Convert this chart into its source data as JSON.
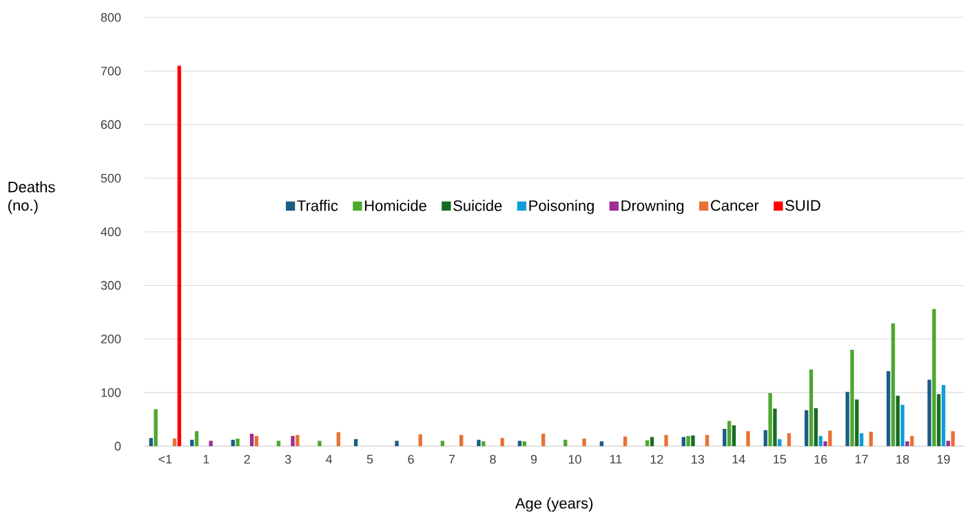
{
  "chart_data": {
    "type": "bar",
    "xlabel": "Age (years)",
    "ylabel": "Deaths (no.)",
    "categories": [
      "<1",
      "1",
      "2",
      "3",
      "4",
      "5",
      "6",
      "7",
      "8",
      "9",
      "10",
      "11",
      "12",
      "13",
      "14",
      "15",
      "16",
      "17",
      "18",
      "19"
    ],
    "ylim": [
      0,
      800
    ],
    "yticks": [
      0,
      100,
      200,
      300,
      400,
      500,
      600,
      700,
      800
    ],
    "grid": "y",
    "legend": "center",
    "series": [
      {
        "name": "Traffic",
        "color": "#195e83",
        "values": [
          15,
          12,
          12,
          null,
          null,
          13,
          10,
          null,
          12,
          10,
          null,
          9,
          null,
          17,
          32,
          30,
          67,
          101,
          140,
          124
        ]
      },
      {
        "name": "Homicide",
        "color": "#4ea72e",
        "values": [
          69,
          28,
          14,
          10,
          10,
          null,
          null,
          10,
          9,
          9,
          12,
          null,
          11,
          19,
          47,
          99,
          143,
          180,
          229,
          256
        ]
      },
      {
        "name": "Suicide",
        "color": "#196b24",
        "values": [
          null,
          null,
          null,
          null,
          null,
          null,
          null,
          null,
          null,
          null,
          null,
          null,
          17,
          20,
          39,
          70,
          71,
          87,
          94,
          97
        ]
      },
      {
        "name": "Poisoning",
        "color": "#0f9ed5",
        "values": [
          null,
          null,
          null,
          null,
          null,
          null,
          null,
          null,
          null,
          null,
          null,
          null,
          null,
          null,
          null,
          13,
          19,
          24,
          77,
          114
        ]
      },
      {
        "name": "Drowning",
        "color": "#a02b93",
        "values": [
          null,
          10,
          23,
          19,
          null,
          null,
          null,
          null,
          null,
          null,
          null,
          null,
          null,
          null,
          null,
          null,
          9,
          null,
          9,
          10
        ]
      },
      {
        "name": "Cancer",
        "color": "#e97132",
        "values": [
          14,
          null,
          19,
          21,
          26,
          null,
          22,
          21,
          15,
          23,
          14,
          18,
          21,
          21,
          28,
          24,
          29,
          27,
          19,
          28
        ]
      },
      {
        "name": "SUID",
        "color": "#ff0000",
        "values": [
          710,
          null,
          null,
          null,
          null,
          null,
          null,
          null,
          null,
          null,
          null,
          null,
          null,
          null,
          null,
          null,
          null,
          null,
          null,
          null
        ]
      }
    ]
  }
}
